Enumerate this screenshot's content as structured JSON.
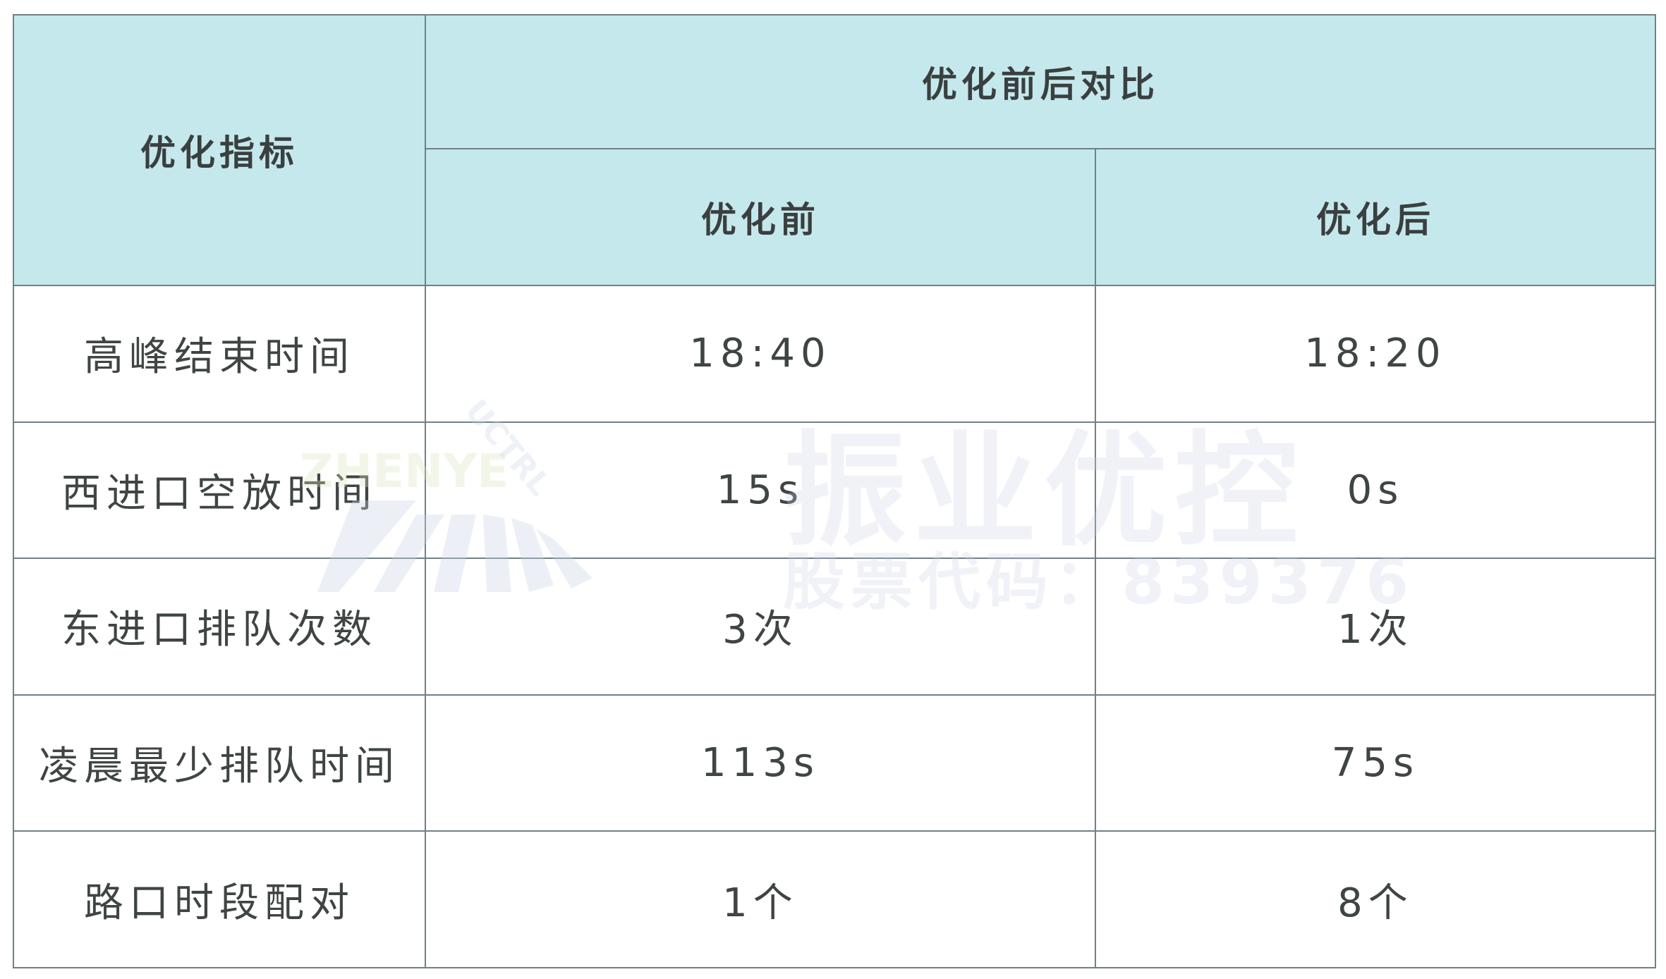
{
  "table": {
    "header": {
      "metric_label": "优化指标",
      "group_label": "优化前后对比",
      "before_label": "优化前",
      "after_label": "优化后"
    },
    "rows": [
      {
        "metric": "高峰结束时间",
        "before": "18:40",
        "after": "18:20"
      },
      {
        "metric": "西进口空放时间",
        "before": "15s",
        "after": "0s"
      },
      {
        "metric": "东进口排队次数",
        "before": "3次",
        "after": "1次"
      },
      {
        "metric": "凌晨最少排队时间",
        "before": "113s",
        "after": "75s"
      },
      {
        "metric": "路口时段配对",
        "before": "1个",
        "after": "8个"
      }
    ]
  },
  "watermark": {
    "brand": "振业优控",
    "stock_code": "股票代码：839376",
    "logo_text": "ZHENYE",
    "logo_arc_text": "UCTRL"
  },
  "colors": {
    "header_bg": "#c5e8ec",
    "border": "#6f8186",
    "text": "#3f4444"
  }
}
